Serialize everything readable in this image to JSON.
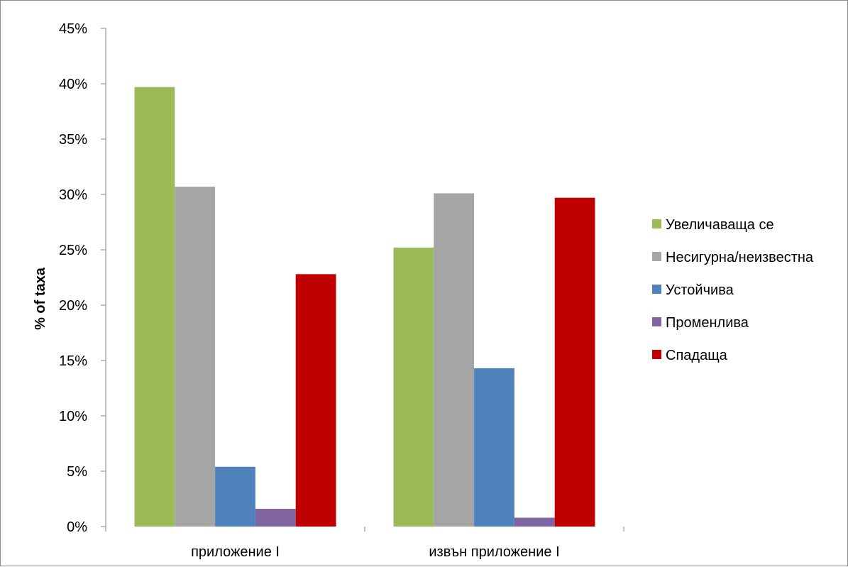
{
  "chart_data": {
    "type": "bar",
    "categories": [
      "приложение I",
      "извън приложение I"
    ],
    "ylabel": "% of taxa",
    "xlabel": "",
    "ylim": [
      0,
      0.45
    ],
    "ytick_step": 0.05,
    "yticks": [
      "0%",
      "5%",
      "10%",
      "15%",
      "20%",
      "25%",
      "30%",
      "35%",
      "40%",
      "45%"
    ],
    "legend_position": "right",
    "grid": false,
    "series": [
      {
        "name": "Увеличаваща се",
        "color": "#9BBB59",
        "values": [
          0.397,
          0.252
        ]
      },
      {
        "name": "Несигурна/неизвестна",
        "color": "#A5A5A5",
        "values": [
          0.307,
          0.301
        ]
      },
      {
        "name": "Устойчива",
        "color": "#4F81BD",
        "values": [
          0.054,
          0.143
        ]
      },
      {
        "name": "Променлива",
        "color": "#8064A2",
        "values": [
          0.016,
          0.008
        ]
      },
      {
        "name": "Спадаща",
        "color": "#C00000",
        "values": [
          0.228,
          0.297
        ]
      }
    ]
  }
}
